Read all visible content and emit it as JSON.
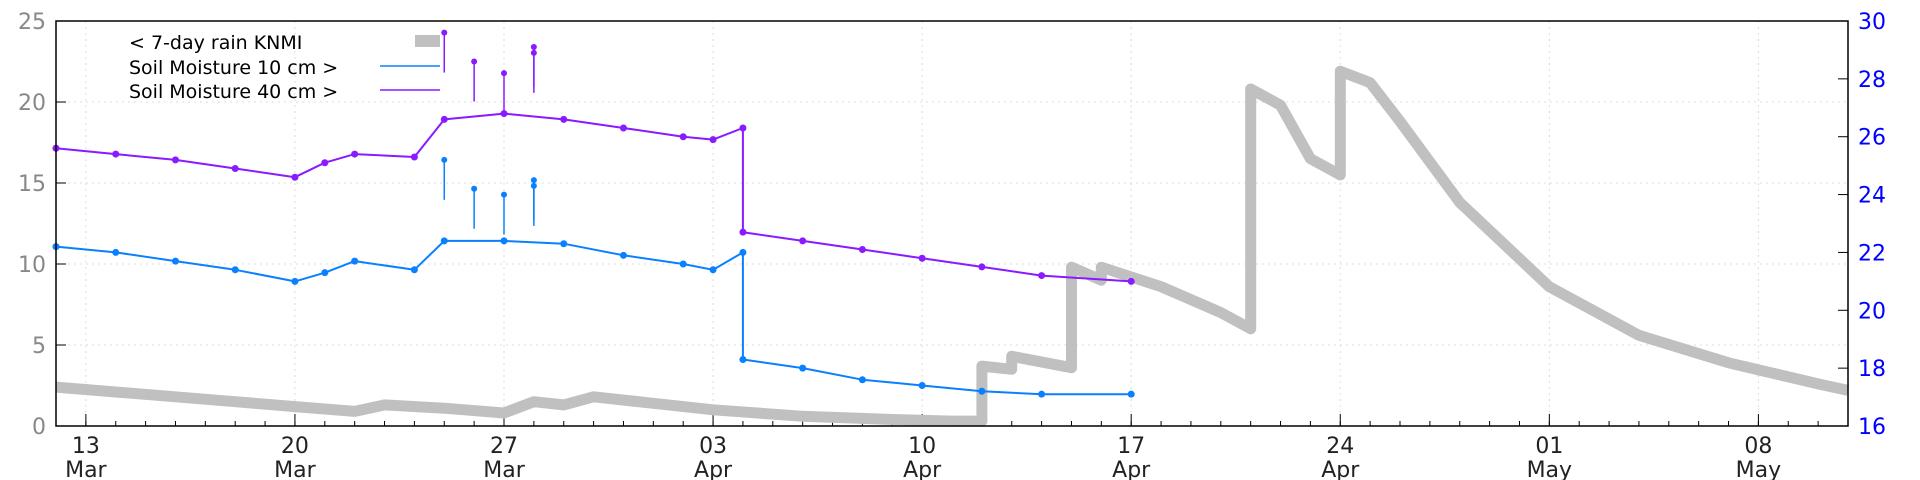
{
  "chart_data": {
    "type": "line",
    "title": "",
    "xlabel": "",
    "ylabel_left": "",
    "ylabel_right": "",
    "x_axis": {
      "start": "2024-03-12",
      "end": "2024-05-11",
      "ticks": [
        {
          "date": "2024-03-13",
          "day": "13",
          "month": "Mar"
        },
        {
          "date": "2024-03-20",
          "day": "20",
          "month": "Mar"
        },
        {
          "date": "2024-03-27",
          "day": "27",
          "month": "Mar"
        },
        {
          "date": "2024-04-03",
          "day": "03",
          "month": "Apr"
        },
        {
          "date": "2024-04-10",
          "day": "10",
          "month": "Apr"
        },
        {
          "date": "2024-04-17",
          "day": "17",
          "month": "Apr"
        },
        {
          "date": "2024-04-24",
          "day": "24",
          "month": "Apr"
        },
        {
          "date": "2024-05-01",
          "day": "01",
          "month": "May"
        },
        {
          "date": "2024-05-08",
          "day": "08",
          "month": "May"
        }
      ]
    },
    "y_left": {
      "min": 0,
      "max": 25,
      "ticks": [
        0,
        5,
        10,
        15,
        20,
        25
      ]
    },
    "y_right": {
      "min": 16,
      "max": 30,
      "ticks": [
        16,
        18,
        20,
        22,
        24,
        26,
        28,
        30
      ]
    },
    "grid": true,
    "legend_position": "top-left",
    "series": [
      {
        "name": "< 7-day rain KNMI",
        "axis": "left",
        "color": "#c0c0c0",
        "style": "thick-line",
        "points": [
          [
            "2024-03-12",
            2.4
          ],
          [
            "2024-03-14",
            2.1
          ],
          [
            "2024-03-16",
            1.8
          ],
          [
            "2024-03-18",
            1.5
          ],
          [
            "2024-03-20",
            1.2
          ],
          [
            "2024-03-22",
            0.9
          ],
          [
            "2024-03-23",
            1.3
          ],
          [
            "2024-03-25",
            1.1
          ],
          [
            "2024-03-27",
            0.8
          ],
          [
            "2024-03-28",
            1.5
          ],
          [
            "2024-03-29",
            1.3
          ],
          [
            "2024-03-30",
            1.8
          ],
          [
            "2024-04-01",
            1.4
          ],
          [
            "2024-04-03",
            1.0
          ],
          [
            "2024-04-06",
            0.6
          ],
          [
            "2024-04-09",
            0.4
          ],
          [
            "2024-04-11",
            0.3
          ],
          [
            "2024-04-12",
            0.3
          ],
          [
            "2024-04-12",
            3.7
          ],
          [
            "2024-04-13",
            3.5
          ],
          [
            "2024-04-13",
            4.3
          ],
          [
            "2024-04-15",
            3.6
          ],
          [
            "2024-04-15",
            9.8
          ],
          [
            "2024-04-16",
            9.0
          ],
          [
            "2024-04-16",
            9.8
          ],
          [
            "2024-04-18",
            8.6
          ],
          [
            "2024-04-20",
            7.0
          ],
          [
            "2024-04-21",
            6.0
          ],
          [
            "2024-04-21",
            20.8
          ],
          [
            "2024-04-22",
            19.8
          ],
          [
            "2024-04-23",
            16.5
          ],
          [
            "2024-04-23",
            16.5
          ],
          [
            "2024-04-24",
            15.5
          ],
          [
            "2024-04-24",
            17.2
          ],
          [
            "2024-04-24",
            21.9
          ],
          [
            "2024-04-25",
            21.2
          ],
          [
            "2024-04-26",
            18.8
          ],
          [
            "2024-04-28",
            13.8
          ],
          [
            "2024-05-01",
            8.6
          ],
          [
            "2024-05-04",
            5.6
          ],
          [
            "2024-05-07",
            3.9
          ],
          [
            "2024-05-10",
            2.6
          ],
          [
            "2024-05-11",
            2.2
          ]
        ]
      },
      {
        "name": "Soil Moisture 10 cm >",
        "axis": "right",
        "color": "#0a80ff",
        "style": "line-points",
        "points": [
          [
            "2024-03-12",
            22.2
          ],
          [
            "2024-03-14",
            22.0
          ],
          [
            "2024-03-16",
            21.7
          ],
          [
            "2024-03-18",
            21.4
          ],
          [
            "2024-03-20",
            21.0
          ],
          [
            "2024-03-21",
            21.3
          ],
          [
            "2024-03-22",
            21.7
          ],
          [
            "2024-03-24",
            21.4
          ],
          [
            "2024-03-25",
            22.4
          ],
          [
            "2024-03-27",
            22.4
          ],
          [
            "2024-03-29",
            22.3
          ],
          [
            "2024-03-31",
            21.9
          ],
          [
            "2024-04-02",
            21.6
          ],
          [
            "2024-04-03",
            21.4
          ],
          [
            "2024-04-04",
            22.0
          ],
          [
            "2024-04-04",
            18.3
          ],
          [
            "2024-04-06",
            18.0
          ],
          [
            "2024-04-08",
            17.6
          ],
          [
            "2024-04-10",
            17.4
          ],
          [
            "2024-04-12",
            17.2
          ],
          [
            "2024-04-14",
            17.1
          ],
          [
            "2024-04-17",
            17.1
          ]
        ]
      },
      {
        "name": "Soil Moisture 40 cm >",
        "axis": "right",
        "color": "#8a1aff",
        "style": "line-points",
        "points": [
          [
            "2024-03-12",
            25.6
          ],
          [
            "2024-03-14",
            25.4
          ],
          [
            "2024-03-16",
            25.2
          ],
          [
            "2024-03-18",
            24.9
          ],
          [
            "2024-03-20",
            24.6
          ],
          [
            "2024-03-21",
            25.1
          ],
          [
            "2024-03-22",
            25.4
          ],
          [
            "2024-03-24",
            25.3
          ],
          [
            "2024-03-25",
            26.6
          ],
          [
            "2024-03-27",
            26.8
          ],
          [
            "2024-03-29",
            26.6
          ],
          [
            "2024-03-31",
            26.3
          ],
          [
            "2024-04-02",
            26.0
          ],
          [
            "2024-04-03",
            25.9
          ],
          [
            "2024-04-04",
            26.3
          ],
          [
            "2024-04-04",
            22.7
          ],
          [
            "2024-04-06",
            22.4
          ],
          [
            "2024-04-08",
            22.1
          ],
          [
            "2024-04-10",
            21.8
          ],
          [
            "2024-04-12",
            21.5
          ],
          [
            "2024-04-14",
            21.2
          ],
          [
            "2024-04-17",
            21.0
          ]
        ]
      }
    ],
    "spikes": [
      {
        "series": 1,
        "date": "2024-03-25",
        "value": 25.2
      },
      {
        "series": 1,
        "date": "2024-03-26",
        "value": 24.2
      },
      {
        "series": 1,
        "date": "2024-03-27",
        "value": 24.0
      },
      {
        "series": 1,
        "date": "2024-03-28",
        "value": 24.5
      },
      {
        "series": 1,
        "date": "2024-03-28",
        "value": 24.3
      },
      {
        "series": 2,
        "date": "2024-03-25",
        "value": 29.6
      },
      {
        "series": 2,
        "date": "2024-03-26",
        "value": 28.6
      },
      {
        "series": 2,
        "date": "2024-03-27",
        "value": 28.2
      },
      {
        "series": 2,
        "date": "2024-03-28",
        "value": 29.1
      },
      {
        "series": 2,
        "date": "2024-03-28",
        "value": 28.9
      }
    ]
  }
}
